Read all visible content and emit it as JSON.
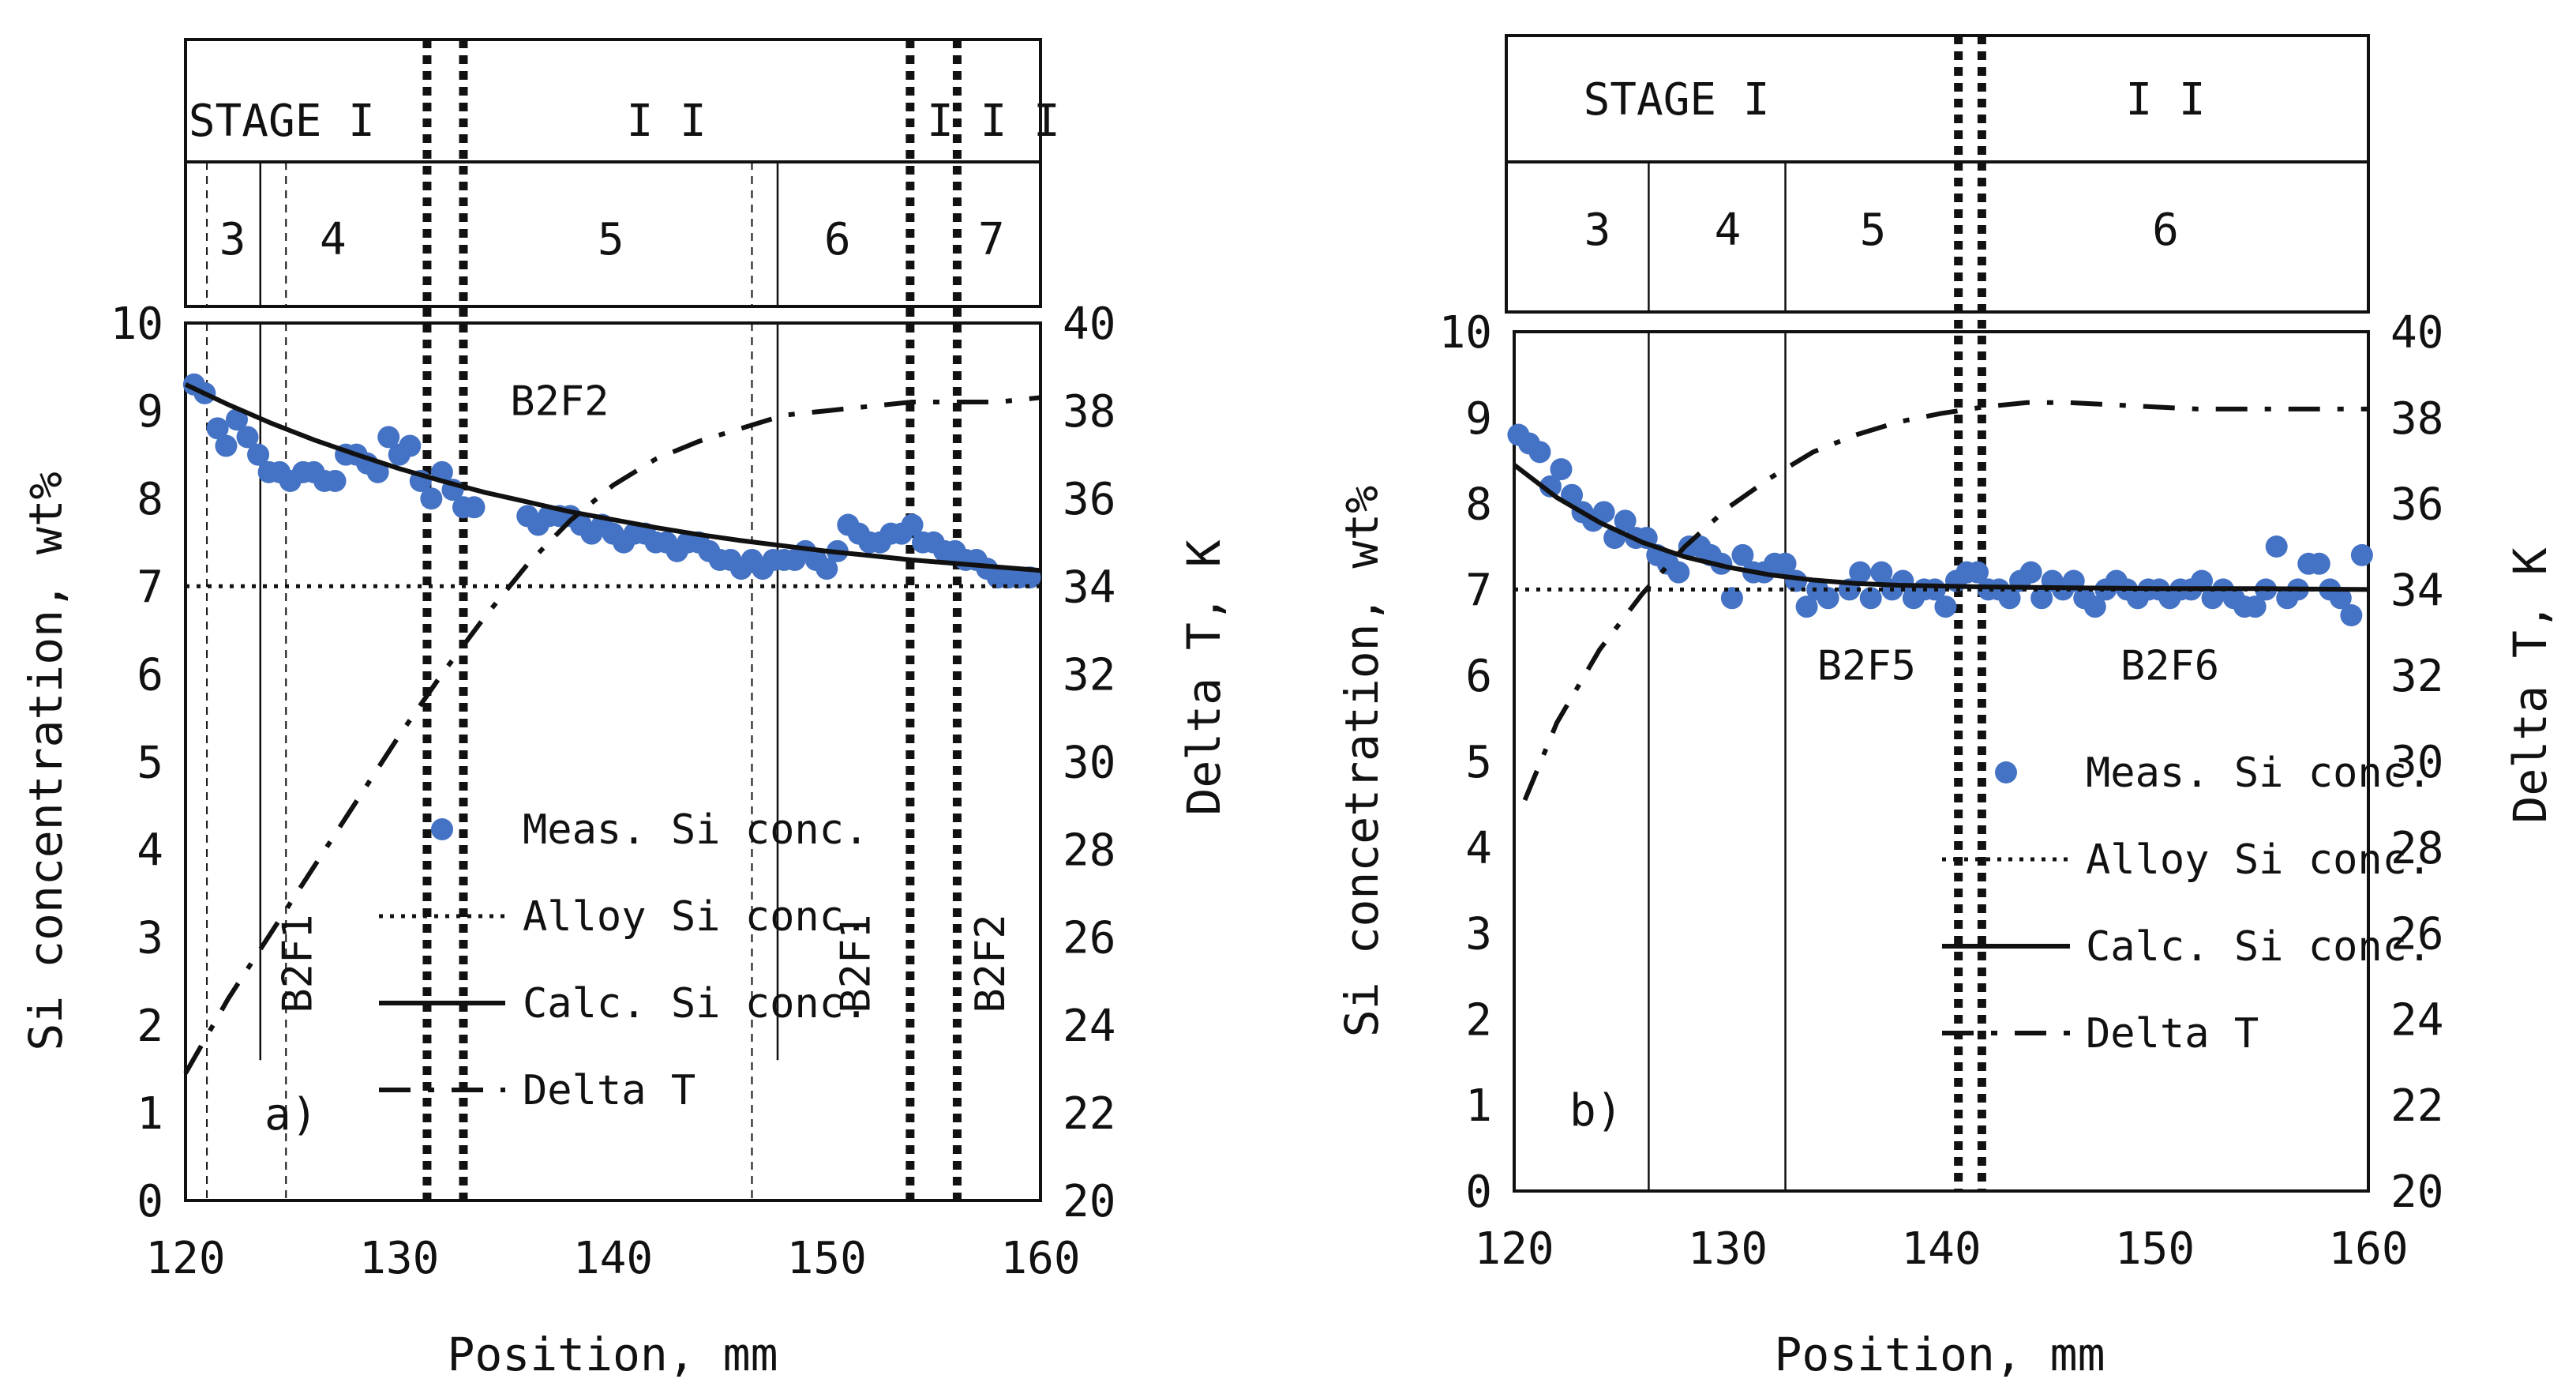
{
  "chart_data": [
    {
      "type": "line",
      "panel_label": "a)",
      "xlabel": "Position, mm",
      "ylabel": "Si concentration, wt%",
      "y2label": "Delta T, K",
      "xlim": [
        120,
        160
      ],
      "ylim": [
        0,
        10
      ],
      "y2lim": [
        20,
        40
      ],
      "xticks": [
        "120",
        "130",
        "140",
        "150",
        "160"
      ],
      "yticks": [
        "0",
        "1",
        "2",
        "3",
        "4",
        "5",
        "6",
        "7",
        "8",
        "9",
        "10"
      ],
      "y2ticks": [
        "20",
        "22",
        "24",
        "26",
        "28",
        "30",
        "32",
        "34",
        "36",
        "38",
        "40"
      ],
      "stages": [
        {
          "label": "STAGE I",
          "x_center": 124.5
        },
        {
          "label": "I I",
          "x_center": 142.5
        },
        {
          "label": "I I I",
          "x_center": 157.8
        }
      ],
      "zones": [
        {
          "label": "3",
          "x_center": 122.2
        },
        {
          "label": "4",
          "x_center": 126.9
        },
        {
          "label": "5",
          "x_center": 139.9
        },
        {
          "label": "6",
          "x_center": 150.5
        },
        {
          "label": "7",
          "x_center": 157.7
        }
      ],
      "stage_boundaries": [
        131.3,
        133.0,
        153.9,
        156.1
      ],
      "zone_solid_lines": [
        123.5,
        147.7
      ],
      "zone_dashed_lines": [
        121.0,
        124.7,
        146.5
      ],
      "region_labels": [
        {
          "text": "B2F2",
          "x": 137.5,
          "y": 8.95,
          "rotated": false
        },
        {
          "text": "B2F1",
          "x": 125.9,
          "y": 2.7,
          "rotated": true
        },
        {
          "text": "B2F1",
          "x": 152.0,
          "y": 2.7,
          "rotated": true
        },
        {
          "text": "B2F2",
          "x": 158.3,
          "y": 2.7,
          "rotated": true
        }
      ],
      "legend": [
        "Meas. Si conc.",
        "Alloy Si conc.",
        "Calc. Si conc.",
        "Delta T"
      ],
      "series": [
        {
          "name": "Meas. Si conc.",
          "axis": "left",
          "style": "markers",
          "color": "#4472C4",
          "x": [
            120.4,
            120.9,
            121.5,
            121.9,
            122.4,
            122.9,
            123.4,
            123.9,
            124.4,
            124.9,
            125.5,
            126.0,
            126.5,
            127.0,
            127.5,
            128.0,
            128.5,
            129.0,
            129.5,
            130.0,
            130.5,
            131.0,
            131.5,
            132.0,
            132.5,
            133.0,
            133.5,
            136.0,
            136.5,
            137.0,
            137.5,
            138.0,
            138.5,
            139.0,
            139.5,
            140.0,
            140.5,
            141.0,
            141.5,
            142.0,
            142.5,
            143.0,
            143.5,
            144.0,
            144.5,
            145.0,
            145.5,
            146.0,
            146.5,
            147.0,
            147.5,
            148.0,
            148.5,
            149.0,
            149.5,
            150.0,
            150.5,
            151.0,
            151.5,
            152.0,
            152.5,
            153.0,
            153.5,
            154.0,
            154.5,
            155.0,
            155.5,
            156.0,
            156.5,
            157.0,
            157.5,
            158.0,
            158.5,
            159.0,
            159.5
          ],
          "y": [
            9.3,
            9.2,
            8.8,
            8.6,
            8.9,
            8.7,
            8.5,
            8.3,
            8.3,
            8.2,
            8.3,
            8.3,
            8.2,
            8.2,
            8.5,
            8.5,
            8.4,
            8.3,
            8.7,
            8.5,
            8.6,
            8.2,
            8.0,
            8.3,
            8.1,
            7.9,
            7.9,
            7.8,
            7.7,
            7.8,
            7.8,
            7.8,
            7.7,
            7.6,
            7.7,
            7.6,
            7.5,
            7.6,
            7.6,
            7.5,
            7.5,
            7.4,
            7.5,
            7.5,
            7.4,
            7.3,
            7.3,
            7.2,
            7.3,
            7.2,
            7.3,
            7.3,
            7.3,
            7.4,
            7.3,
            7.2,
            7.4,
            7.7,
            7.6,
            7.5,
            7.5,
            7.6,
            7.6,
            7.7,
            7.5,
            7.5,
            7.4,
            7.4,
            7.3,
            7.3,
            7.2,
            7.1,
            7.1,
            7.1,
            7.1
          ]
        },
        {
          "name": "Alloy Si conc.",
          "axis": "left",
          "style": "dotted",
          "x": [
            120,
            160
          ],
          "y": [
            7.0,
            7.0
          ]
        },
        {
          "name": "Calc. Si conc.",
          "axis": "left",
          "style": "solid",
          "x": [
            120,
            122,
            124,
            126,
            128,
            130,
            132,
            134,
            136,
            138,
            140,
            142,
            144,
            146,
            148,
            150,
            152,
            154,
            156,
            158,
            160
          ],
          "y": [
            9.3,
            9.07,
            8.86,
            8.67,
            8.5,
            8.34,
            8.2,
            8.07,
            7.96,
            7.85,
            7.76,
            7.67,
            7.59,
            7.52,
            7.46,
            7.4,
            7.35,
            7.3,
            7.26,
            7.22,
            7.18
          ]
        },
        {
          "name": "Delta T",
          "axis": "right",
          "style": "dash-dot",
          "x": [
            120,
            122,
            124,
            126,
            128,
            130,
            132,
            134,
            136,
            138,
            140,
            142,
            144,
            146,
            148,
            150,
            152,
            154,
            156,
            158,
            160
          ],
          "y": [
            22.9,
            24.6,
            26.1,
            27.6,
            29.1,
            30.6,
            32.0,
            33.3,
            34.5,
            35.5,
            36.3,
            36.9,
            37.3,
            37.6,
            37.9,
            38.0,
            38.1,
            38.2,
            38.2,
            38.2,
            38.3
          ]
        }
      ]
    },
    {
      "type": "line",
      "panel_label": "b)",
      "xlabel": "Position, mm",
      "ylabel": "Si concetration, wt%",
      "y2label": "Delta T, K",
      "xlim": [
        120,
        160
      ],
      "ylim": [
        0,
        10
      ],
      "y2lim": [
        20,
        40
      ],
      "xticks": [
        "120",
        "130",
        "140",
        "150",
        "160"
      ],
      "yticks": [
        "0",
        "1",
        "2",
        "3",
        "4",
        "5",
        "6",
        "7",
        "8",
        "9",
        "10"
      ],
      "y2ticks": [
        "20",
        "22",
        "24",
        "26",
        "28",
        "30",
        "32",
        "34",
        "36",
        "38",
        "40"
      ],
      "stages": [
        {
          "label": "STAGE I",
          "x_center": 127.6
        },
        {
          "label": "I I",
          "x_center": 150.5
        }
      ],
      "zones": [
        {
          "label": "3",
          "x_center": 123.9
        },
        {
          "label": "4",
          "x_center": 130.0
        },
        {
          "label": "5",
          "x_center": 136.8
        },
        {
          "label": "6",
          "x_center": 150.5
        }
      ],
      "stage_boundaries": [
        140.8,
        141.9
      ],
      "zone_solid_lines": [
        126.3,
        132.7
      ],
      "zone_dashed_lines": [],
      "region_labels": [
        {
          "text": "B2F5",
          "x": 136.5,
          "y": 5.95,
          "rotated": false
        },
        {
          "text": "B2F6",
          "x": 150.7,
          "y": 5.95,
          "rotated": false
        }
      ],
      "legend": [
        "Meas. Si conc.",
        "Alloy Si conc.",
        "Calc. Si conc.",
        "Delta T"
      ],
      "series": [
        {
          "name": "Meas. Si conc.",
          "axis": "left",
          "style": "markers",
          "color": "#4472C4",
          "x": [
            120.2,
            120.7,
            121.2,
            121.7,
            122.2,
            122.7,
            123.2,
            123.7,
            124.2,
            124.7,
            125.2,
            125.7,
            126.2,
            126.7,
            127.2,
            127.7,
            128.2,
            128.7,
            129.2,
            129.7,
            130.2,
            130.7,
            131.2,
            131.7,
            132.2,
            132.7,
            133.2,
            133.7,
            134.2,
            134.7,
            135.7,
            136.2,
            136.7,
            137.2,
            137.7,
            138.2,
            138.7,
            139.2,
            139.7,
            140.2,
            140.7,
            141.2,
            141.7,
            142.2,
            142.7,
            143.2,
            143.7,
            144.2,
            144.7,
            145.2,
            145.7,
            146.2,
            146.7,
            147.2,
            147.7,
            148.2,
            148.7,
            149.2,
            149.7,
            150.2,
            150.7,
            151.2,
            151.7,
            152.2,
            152.7,
            153.2,
            153.7,
            154.2,
            154.7,
            155.2,
            155.7,
            156.2,
            156.7,
            157.2,
            157.7,
            158.2,
            158.7,
            159.2,
            159.7
          ],
          "y": [
            8.8,
            8.7,
            8.6,
            8.2,
            8.4,
            8.1,
            7.9,
            7.8,
            7.9,
            7.6,
            7.8,
            7.6,
            7.6,
            7.4,
            7.3,
            7.2,
            7.5,
            7.5,
            7.4,
            7.3,
            6.9,
            7.4,
            7.2,
            7.2,
            7.3,
            7.3,
            7.1,
            6.8,
            7.0,
            6.9,
            7.0,
            7.2,
            6.9,
            7.2,
            7.0,
            7.1,
            6.9,
            7.0,
            7.0,
            6.8,
            7.1,
            7.2,
            7.2,
            7.0,
            7.0,
            6.9,
            7.1,
            7.2,
            6.9,
            7.1,
            7.0,
            7.1,
            6.9,
            6.8,
            7.0,
            7.1,
            7.0,
            6.9,
            7.0,
            7.0,
            6.9,
            7.0,
            7.0,
            7.1,
            6.9,
            7.0,
            6.9,
            6.8,
            6.8,
            7.0,
            7.5,
            6.9,
            7.0,
            7.3,
            7.3,
            7.0,
            6.9,
            6.7,
            7.4
          ]
        },
        {
          "name": "Alloy Si conc.",
          "axis": "left",
          "style": "dotted",
          "x": [
            120,
            160
          ],
          "y": [
            7.0,
            7.0
          ]
        },
        {
          "name": "Calc. Si conc.",
          "axis": "left",
          "style": "solid",
          "x": [
            120,
            122,
            124,
            126,
            128,
            130,
            132,
            134,
            136,
            138,
            140,
            142,
            146,
            150,
            155,
            160
          ],
          "y": [
            8.45,
            8.07,
            7.78,
            7.55,
            7.38,
            7.26,
            7.17,
            7.11,
            7.07,
            7.05,
            7.04,
            7.03,
            7.02,
            7.01,
            7.01,
            7.0
          ]
        },
        {
          "name": "Delta T",
          "axis": "right",
          "style": "dash-dot",
          "x": [
            120.5,
            122,
            124,
            126,
            128,
            130,
            132,
            134,
            136,
            138,
            140,
            142,
            144,
            146,
            148,
            150,
            152,
            154,
            156,
            158,
            160
          ],
          "y": [
            29.1,
            30.9,
            32.6,
            33.9,
            35.0,
            35.9,
            36.6,
            37.2,
            37.6,
            37.9,
            38.1,
            38.25,
            38.35,
            38.35,
            38.3,
            38.25,
            38.2,
            38.2,
            38.2,
            38.2,
            38.2
          ]
        }
      ]
    }
  ]
}
